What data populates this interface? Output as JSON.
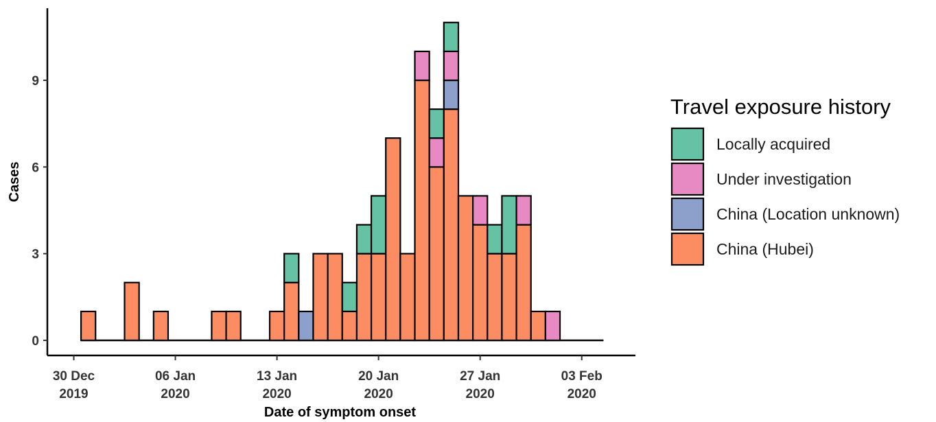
{
  "chart_data": {
    "type": "bar",
    "stacked": true,
    "title": "",
    "xlabel": "Date of symptom onset",
    "ylabel": "Cases",
    "ylim": [
      0,
      11
    ],
    "y_ticks": [
      0,
      3,
      6,
      9
    ],
    "x_ticks": [
      {
        "date": "2019-12-30",
        "line1": "30 Dec",
        "line2": "2019"
      },
      {
        "date": "2020-01-06",
        "line1": "06 Jan",
        "line2": "2020"
      },
      {
        "date": "2020-01-13",
        "line1": "13 Jan",
        "line2": "2020"
      },
      {
        "date": "2020-01-20",
        "line1": "20 Jan",
        "line2": "2020"
      },
      {
        "date": "2020-01-27",
        "line1": "27 Jan",
        "line2": "2020"
      },
      {
        "date": "2020-02-03",
        "line1": "03 Feb",
        "line2": "2020"
      }
    ],
    "x_range": [
      "2019-12-27",
      "2020-02-06"
    ],
    "grid": false,
    "legend": {
      "title": "Travel exposure history",
      "position": "right"
    },
    "categories": [
      "2019-12-31",
      "2020-01-01",
      "2020-01-02",
      "2020-01-03",
      "2020-01-04",
      "2020-01-05",
      "2020-01-06",
      "2020-01-07",
      "2020-01-08",
      "2020-01-09",
      "2020-01-10",
      "2020-01-11",
      "2020-01-12",
      "2020-01-13",
      "2020-01-14",
      "2020-01-15",
      "2020-01-16",
      "2020-01-17",
      "2020-01-18",
      "2020-01-19",
      "2020-01-20",
      "2020-01-21",
      "2020-01-22",
      "2020-01-23",
      "2020-01-24",
      "2020-01-25",
      "2020-01-26",
      "2020-01-27",
      "2020-01-28",
      "2020-01-29",
      "2020-01-30",
      "2020-01-31",
      "2020-02-01",
      "2020-02-02",
      "2020-02-03",
      "2020-02-04"
    ],
    "series": [
      {
        "name": "China (Hubei)",
        "color": "#fc8d62",
        "values": [
          1,
          0,
          0,
          2,
          0,
          1,
          0,
          0,
          0,
          1,
          1,
          0,
          0,
          1,
          2,
          0,
          3,
          3,
          1,
          3,
          3,
          7,
          3,
          9,
          6,
          8,
          5,
          4,
          3,
          3,
          4,
          1,
          0,
          0,
          0,
          0
        ]
      },
      {
        "name": "China (Location unknown)",
        "color": "#8da0cb",
        "values": [
          0,
          0,
          0,
          0,
          0,
          0,
          0,
          0,
          0,
          0,
          0,
          0,
          0,
          0,
          0,
          1,
          0,
          0,
          0,
          0,
          0,
          0,
          0,
          0,
          0,
          1,
          0,
          0,
          0,
          0,
          0,
          0,
          0,
          0,
          0,
          0
        ]
      },
      {
        "name": "Under investigation",
        "color": "#e78ac3",
        "values": [
          0,
          0,
          0,
          0,
          0,
          0,
          0,
          0,
          0,
          0,
          0,
          0,
          0,
          0,
          0,
          0,
          0,
          0,
          0,
          0,
          0,
          0,
          0,
          1,
          1,
          1,
          0,
          1,
          0,
          0,
          1,
          0,
          1,
          0,
          0,
          0
        ]
      },
      {
        "name": "Locally acquired",
        "color": "#66c2a5",
        "values": [
          0,
          0,
          0,
          0,
          0,
          0,
          0,
          0,
          0,
          0,
          0,
          0,
          0,
          0,
          1,
          0,
          0,
          0,
          1,
          1,
          2,
          0,
          0,
          0,
          1,
          1,
          0,
          0,
          1,
          2,
          0,
          0,
          0,
          0,
          0,
          0
        ]
      }
    ],
    "legend_order": [
      "Locally acquired",
      "Under investigation",
      "China (Location unknown)",
      "China (Hubei)"
    ]
  }
}
